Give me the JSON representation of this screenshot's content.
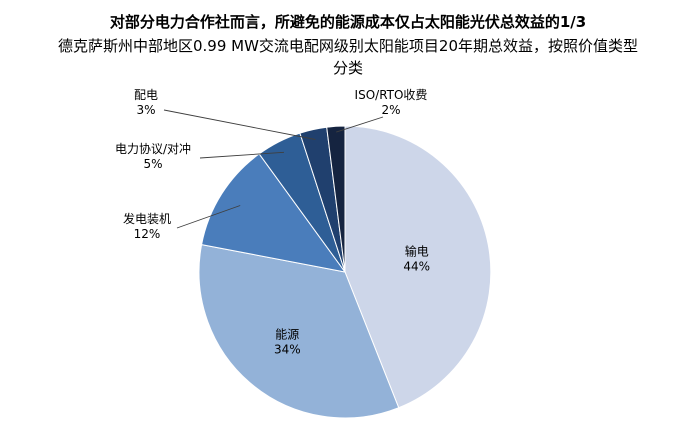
{
  "chart_data": {
    "type": "pie",
    "title": "对部分电力合作社而言，所避免的能源成本仅占太阳能光伏总效益的1/3",
    "subtitle": "德克萨斯州中部地区0.99 MW交流电配网级别太阳能项目20年期总效益，按照价值类型分类",
    "unit": "%",
    "direction": "clockwise",
    "start_angle_deg": 0,
    "legend": "none",
    "slices": [
      {
        "label": "输电",
        "value": 44,
        "color": "#cdd6e9",
        "label_placement": "inside"
      },
      {
        "label": "能源",
        "value": 34,
        "color": "#93b2d8",
        "label_placement": "inside"
      },
      {
        "label": "发电装机",
        "value": 12,
        "color": "#4a7dbb",
        "label_placement": "outside-left"
      },
      {
        "label": "电力协议/对冲",
        "value": 5,
        "color": "#2e5e96",
        "label_placement": "outside-left"
      },
      {
        "label": "配电",
        "value": 3,
        "color": "#20406e",
        "label_placement": "outside-left"
      },
      {
        "label": "ISO/RTO收费",
        "value": 2,
        "color": "#152440",
        "label_placement": "outside-right"
      }
    ]
  }
}
